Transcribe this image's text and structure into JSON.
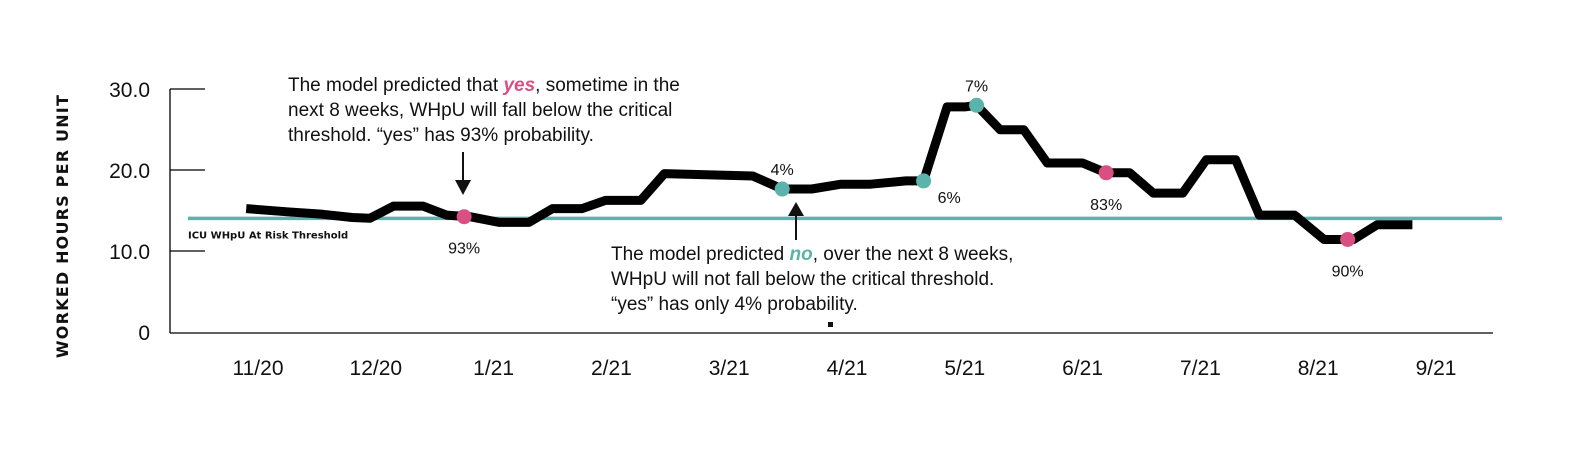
{
  "colors": {
    "line": "#000000",
    "threshold": "#5ab4ac",
    "yes": "#d94f83",
    "no": "#5ab4ac"
  },
  "chart_data": {
    "type": "line",
    "ylabel": "WORKED HOURS PER UNIT",
    "yticks": [
      "30.0",
      "20.0",
      "10.0",
      "0"
    ],
    "ylim": [
      0,
      30
    ],
    "xlim": [
      0,
      10.35
    ],
    "xticks": [
      {
        "x": 0,
        "label": "11/20"
      },
      {
        "x": 1,
        "label": "12/20"
      },
      {
        "x": 2,
        "label": "1/21"
      },
      {
        "x": 3,
        "label": "2/21"
      },
      {
        "x": 4,
        "label": "3/21"
      },
      {
        "x": 5,
        "label": "4/21"
      },
      {
        "x": 6,
        "label": "5/21"
      },
      {
        "x": 7,
        "label": "6/21"
      },
      {
        "x": 8,
        "label": "7/21"
      },
      {
        "x": 9,
        "label": "8/21"
      },
      {
        "x": 10,
        "label": "9/21"
      }
    ],
    "threshold": {
      "value": 14.1,
      "label": "ICU WHpU At Risk Threshold"
    },
    "series": [
      {
        "points": [
          [
            -0.1,
            15.3
          ],
          [
            0.25,
            14.9
          ],
          [
            0.55,
            14.6
          ],
          [
            0.8,
            14.2
          ],
          [
            0.95,
            14.1
          ],
          [
            1.15,
            15.6
          ],
          [
            1.4,
            15.6
          ],
          [
            1.6,
            14.5
          ],
          [
            1.8,
            14.3
          ],
          [
            2.05,
            13.6
          ],
          [
            2.3,
            13.6
          ],
          [
            2.5,
            15.3
          ],
          [
            2.75,
            15.3
          ],
          [
            2.95,
            16.3
          ],
          [
            3.25,
            16.3
          ],
          [
            3.45,
            19.6
          ],
          [
            4.2,
            19.3
          ],
          [
            4.45,
            17.7
          ],
          [
            4.7,
            17.7
          ],
          [
            4.95,
            18.3
          ],
          [
            5.2,
            18.3
          ],
          [
            5.5,
            18.7
          ],
          [
            5.65,
            18.7
          ],
          [
            5.85,
            27.8
          ],
          [
            6.0,
            27.8
          ],
          [
            6.1,
            28.0
          ],
          [
            6.3,
            25.0
          ],
          [
            6.5,
            25.0
          ],
          [
            6.7,
            20.9
          ],
          [
            7.0,
            20.9
          ],
          [
            7.2,
            19.7
          ],
          [
            7.4,
            19.7
          ],
          [
            7.6,
            17.2
          ],
          [
            7.85,
            17.2
          ],
          [
            8.05,
            21.3
          ],
          [
            8.3,
            21.3
          ],
          [
            8.5,
            14.5
          ],
          [
            8.8,
            14.5
          ],
          [
            9.05,
            11.5
          ],
          [
            9.3,
            11.5
          ],
          [
            9.5,
            13.3
          ],
          [
            9.8,
            13.3
          ]
        ]
      }
    ],
    "markers": [
      {
        "x": 1.75,
        "y": 14.3,
        "kind": "yes",
        "label": "93%",
        "label_pos": "below"
      },
      {
        "x": 4.45,
        "y": 17.7,
        "kind": "no",
        "label": "4%",
        "label_pos": "above"
      },
      {
        "x": 5.65,
        "y": 18.7,
        "kind": "no",
        "label": "6%",
        "label_pos": "below-right"
      },
      {
        "x": 6.1,
        "y": 28.0,
        "kind": "no",
        "label": "7%",
        "label_pos": "above"
      },
      {
        "x": 7.2,
        "y": 19.7,
        "kind": "yes",
        "label": "83%",
        "label_pos": "below"
      },
      {
        "x": 9.25,
        "y": 11.5,
        "kind": "yes",
        "label": "90%",
        "label_pos": "below"
      }
    ]
  },
  "annotations": {
    "yes_note": {
      "l1_pre": "The model predicted that ",
      "l1_em": "yes",
      "l1_post": ", sometime in the",
      "l2": "next 8 weeks, WHpU will fall below the critical",
      "l3": "threshold. “yes” has 93% probability."
    },
    "no_note": {
      "l1_pre": "The model predicted ",
      "l1_em": "no",
      "l1_post": ", over the next 8 weeks,",
      "l2": "WHpU will not fall below the critical threshold.",
      "l3": "“yes” has only 4% probability."
    }
  }
}
